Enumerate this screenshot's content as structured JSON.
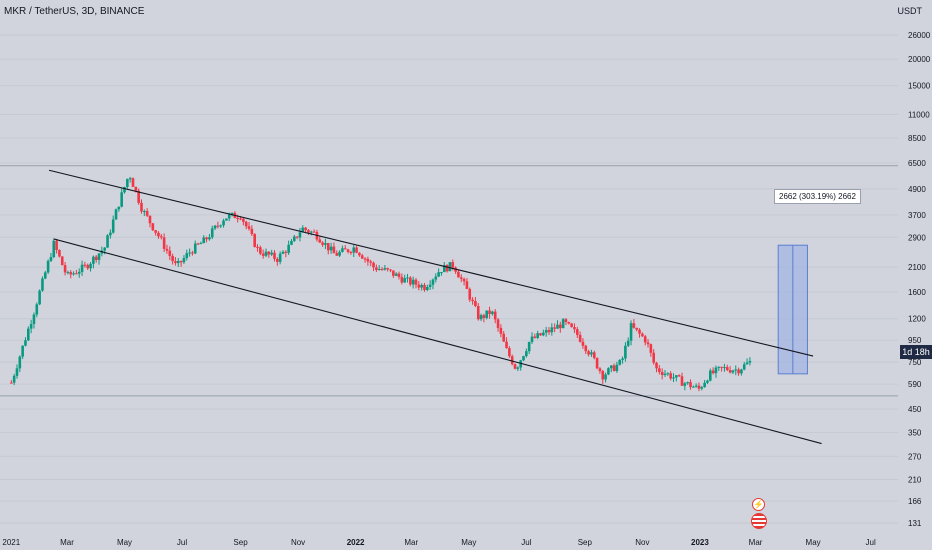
{
  "header": {
    "symbol": "MKR / TetherUS, 3D, BINANCE",
    "unit": "USDT"
  },
  "price_tag": "1d 18h",
  "measure_label": "2662 (303.19%) 2662",
  "icons": {
    "flash": "flash-icon",
    "flag": "us-flag-icon"
  },
  "colors": {
    "up": "#089981",
    "down": "#f23645",
    "measure_fill": "#9fb3e3",
    "measure_border": "#5b7fd1",
    "background": "#d1d4dc",
    "channel": "#131722"
  },
  "chart_data": {
    "type": "candlestick",
    "xlabel": "",
    "ylabel": "",
    "y_scale": "log",
    "ylim": [
      115,
      38000
    ],
    "x_ticks": [
      "2021",
      "Mar",
      "May",
      "Jul",
      "Sep",
      "Nov",
      "2022",
      "Mar",
      "May",
      "Jul",
      "Sep",
      "Nov",
      "2023",
      "Mar",
      "May",
      "Jul"
    ],
    "y_ticks": [
      131,
      166,
      210,
      270,
      350,
      450,
      590,
      750,
      950,
      1200,
      1600,
      2100,
      2900,
      3700,
      4900,
      6500,
      8500,
      11000,
      15000,
      20000,
      26000
    ],
    "horizontal_lines": [
      6300,
      520
    ],
    "close_path": [
      [
        "2021-01-01",
        600
      ],
      [
        "2021-01-25",
        1300
      ],
      [
        "2021-02-15",
        2700
      ],
      [
        "2021-03-01",
        1900
      ],
      [
        "2021-03-20",
        2100
      ],
      [
        "2021-04-10",
        2600
      ],
      [
        "2021-04-25",
        4200
      ],
      [
        "2021-05-06",
        5800
      ],
      [
        "2021-05-20",
        3900
      ],
      [
        "2021-06-05",
        3000
      ],
      [
        "2021-06-25",
        2100
      ],
      [
        "2021-07-10",
        2500
      ],
      [
        "2021-07-25",
        2800
      ],
      [
        "2021-08-15",
        3600
      ],
      [
        "2021-09-01",
        3700
      ],
      [
        "2021-09-20",
        2500
      ],
      [
        "2021-10-10",
        2300
      ],
      [
        "2021-10-25",
        2700
      ],
      [
        "2021-11-05",
        3200
      ],
      [
        "2021-11-20",
        3000
      ],
      [
        "2021-12-10",
        2400
      ],
      [
        "2021-12-31",
        2600
      ],
      [
        "2022-01-20",
        2100
      ],
      [
        "2022-02-05",
        2000
      ],
      [
        "2022-02-25",
        1800
      ],
      [
        "2022-03-15",
        1700
      ],
      [
        "2022-04-01",
        2050
      ],
      [
        "2022-04-15",
        2150
      ],
      [
        "2022-04-30",
        1600
      ],
      [
        "2022-05-12",
        1200
      ],
      [
        "2022-05-25",
        1300
      ],
      [
        "2022-06-10",
        850
      ],
      [
        "2022-06-20",
        700
      ],
      [
        "2022-07-05",
        950
      ],
      [
        "2022-07-25",
        1050
      ],
      [
        "2022-08-10",
        1150
      ],
      [
        "2022-08-25",
        1000
      ],
      [
        "2022-09-10",
        780
      ],
      [
        "2022-09-20",
        650
      ],
      [
        "2022-10-10",
        750
      ],
      [
        "2022-10-20",
        1100
      ],
      [
        "2022-11-05",
        950
      ],
      [
        "2022-11-15",
        700
      ],
      [
        "2022-11-30",
        650
      ],
      [
        "2022-12-15",
        600
      ],
      [
        "2022-12-31",
        560
      ],
      [
        "2023-01-10",
        650
      ],
      [
        "2023-01-25",
        700
      ],
      [
        "2023-02-10",
        690
      ],
      [
        "2023-02-25",
        760
      ]
    ],
    "trendlines": [
      {
        "from": [
          "2021-02-10",
          6000
        ],
        "to": [
          "2023-05-01",
          800
        ]
      },
      {
        "from": [
          "2021-02-15",
          2850
        ],
        "to": [
          "2023-05-10",
          310
        ]
      }
    ],
    "price_range": {
      "x": [
        "2023-03-25",
        "2023-04-25"
      ],
      "y": [
        660,
        2662
      ],
      "label": "2662 (303.19%) 2662"
    }
  }
}
